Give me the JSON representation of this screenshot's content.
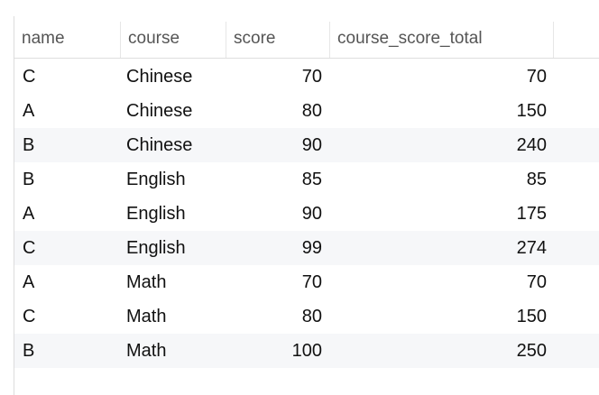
{
  "table": {
    "columns": [
      "name",
      "course",
      "score",
      "course_score_total"
    ],
    "rows": [
      [
        "C",
        "Chinese",
        "70",
        "70"
      ],
      [
        "A",
        "Chinese",
        "80",
        "150"
      ],
      [
        "B",
        "Chinese",
        "90",
        "240"
      ],
      [
        "B",
        "English",
        "85",
        "85"
      ],
      [
        "A",
        "English",
        "90",
        "175"
      ],
      [
        "C",
        "English",
        "99",
        "274"
      ],
      [
        "A",
        "Math",
        "70",
        "70"
      ],
      [
        "C",
        "Math",
        "80",
        "150"
      ],
      [
        "B",
        "Math",
        "100",
        "250"
      ]
    ]
  },
  "colors": {
    "alt_row": "#f6f7f9",
    "header_text": "#555555"
  }
}
